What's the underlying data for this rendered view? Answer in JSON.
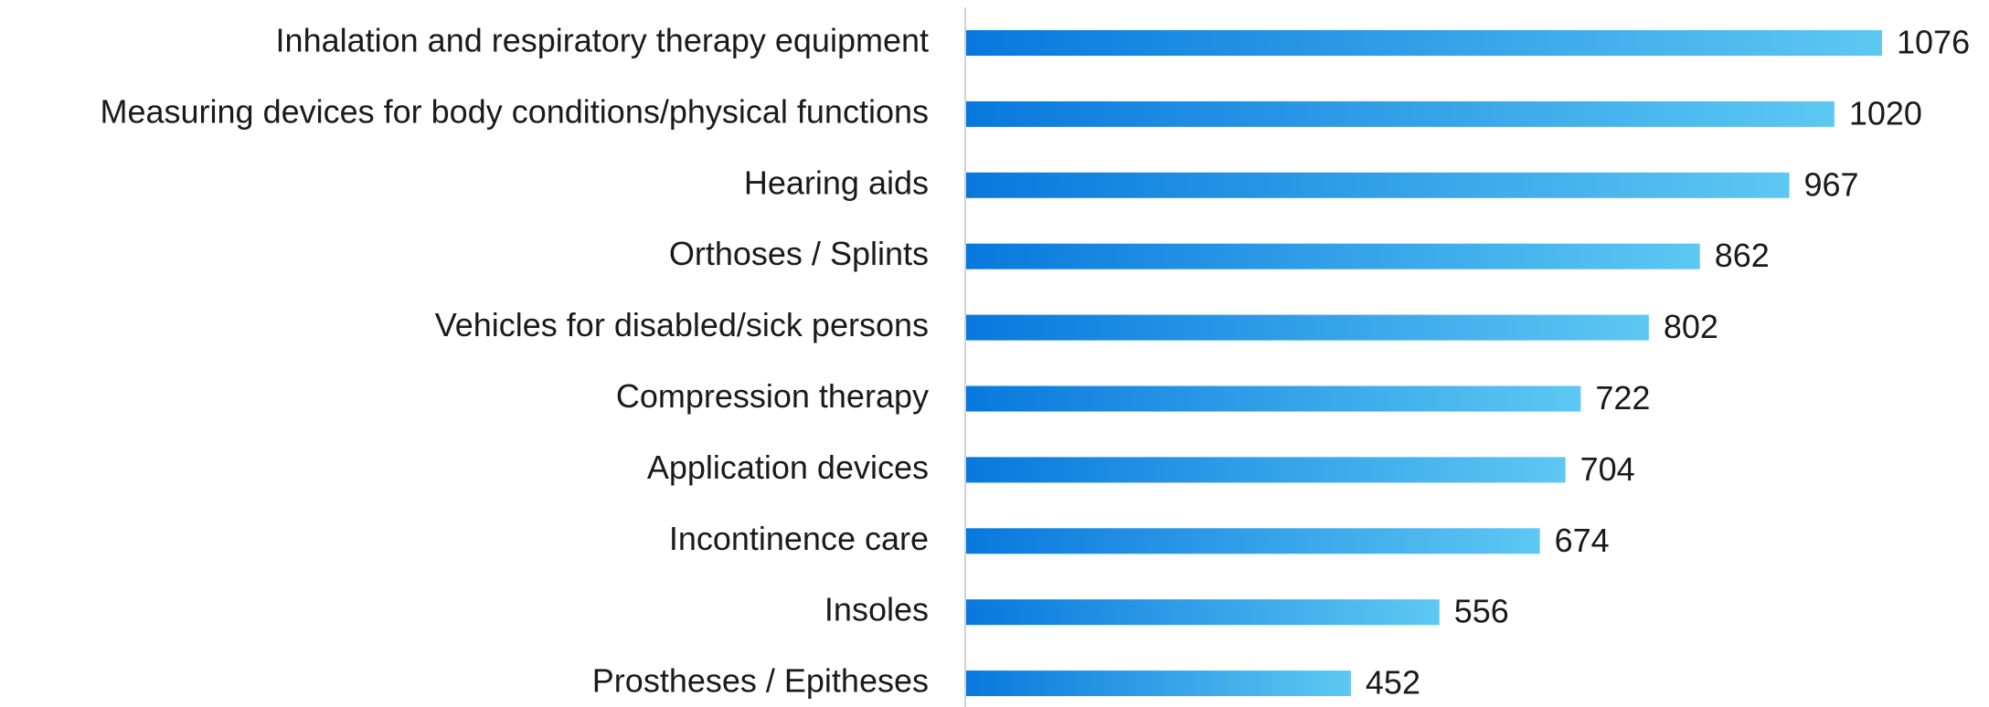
{
  "chart_data": {
    "type": "barh",
    "categories": [
      "Inhalation and respiratory therapy equipment",
      "Measuring devices for body conditions/physical functions",
      "Hearing aids",
      "Orthoses / Splints",
      "Vehicles for disabled/sick persons",
      "Compression therapy",
      "Application devices",
      "Incontinence care",
      "Insoles",
      "Prostheses / Epitheses"
    ],
    "values": [
      1076,
      1020,
      967,
      862,
      802,
      722,
      704,
      674,
      556,
      452
    ],
    "color": [
      "#0878dd",
      "#5dc8f3"
    ]
  }
}
